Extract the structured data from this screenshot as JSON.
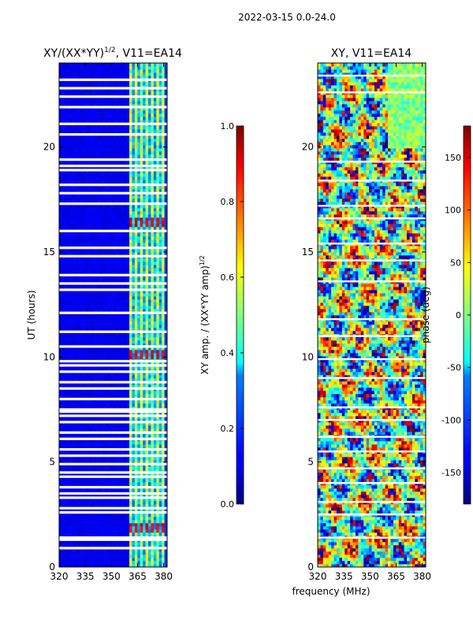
{
  "chart_data": [
    {
      "type": "heatmap",
      "suptitle": "2022-03-15 0.0-24.0",
      "title_main": "XY/(XX*YY)",
      "title_exp": "1/2",
      "title_rest": ", V11=EA14",
      "ylabel": "UT (hours)",
      "xlim": [
        320,
        382
      ],
      "ylim": [
        0,
        24
      ],
      "xticks": [
        320,
        335,
        350,
        365,
        380
      ],
      "yticks": [
        0,
        5,
        10,
        15,
        20
      ],
      "colorbar": {
        "label_main": "XY amp. / (XX*YY amp)",
        "label_exp": "1/2",
        "range": [
          0.0,
          1.0
        ],
        "ticks": [
          "0.0",
          "0.2",
          "0.4",
          "0.6",
          "0.8",
          "1.0"
        ]
      },
      "band_start_mhz": 361,
      "hot_spots_ut": [
        1.9,
        10.1,
        16.4
      ],
      "flagged_rows_ut": [
        0.9,
        1.3,
        1.4,
        2.6,
        2.8,
        3.3,
        3.5,
        3.8,
        4.3,
        4.5,
        4.9,
        5.3,
        5.6,
        6.1,
        6.4,
        6.9,
        7.2,
        7.4,
        7.5,
        8.0,
        8.5,
        8.8,
        9.3,
        9.6,
        9.8,
        10.5,
        11.2,
        12.1,
        13.2,
        13.5,
        13.9,
        14.8,
        15.2,
        16.0,
        17.3,
        17.8,
        18.2,
        18.9,
        19.1,
        19.4,
        20.6,
        21.1,
        21.9,
        22.4,
        22.8,
        23.2
      ]
    },
    {
      "type": "heatmap",
      "title": "XY, V11=EA14",
      "xlabel": "frequency (MHz)",
      "xlim": [
        320,
        382
      ],
      "ylim": [
        0,
        24
      ],
      "xticks": [
        320,
        335,
        350,
        365,
        380
      ],
      "yticks": [
        0,
        5,
        10,
        15,
        20
      ],
      "colorbar": {
        "label": "phase (deg)",
        "range": [
          -180,
          180
        ],
        "ticks": [
          "-150",
          "-100",
          "-50",
          "0",
          "50",
          "100",
          "150"
        ]
      },
      "flagged_rows_ut": [
        1.4,
        2.5,
        3.1,
        4.0,
        4.7,
        5.5,
        6.2,
        7.0,
        7.6,
        9.0,
        9.9,
        11.0,
        11.8,
        13.6,
        14.6,
        15.4,
        16.6,
        17.2,
        18.4,
        19.3,
        22.6,
        23.4
      ]
    }
  ]
}
